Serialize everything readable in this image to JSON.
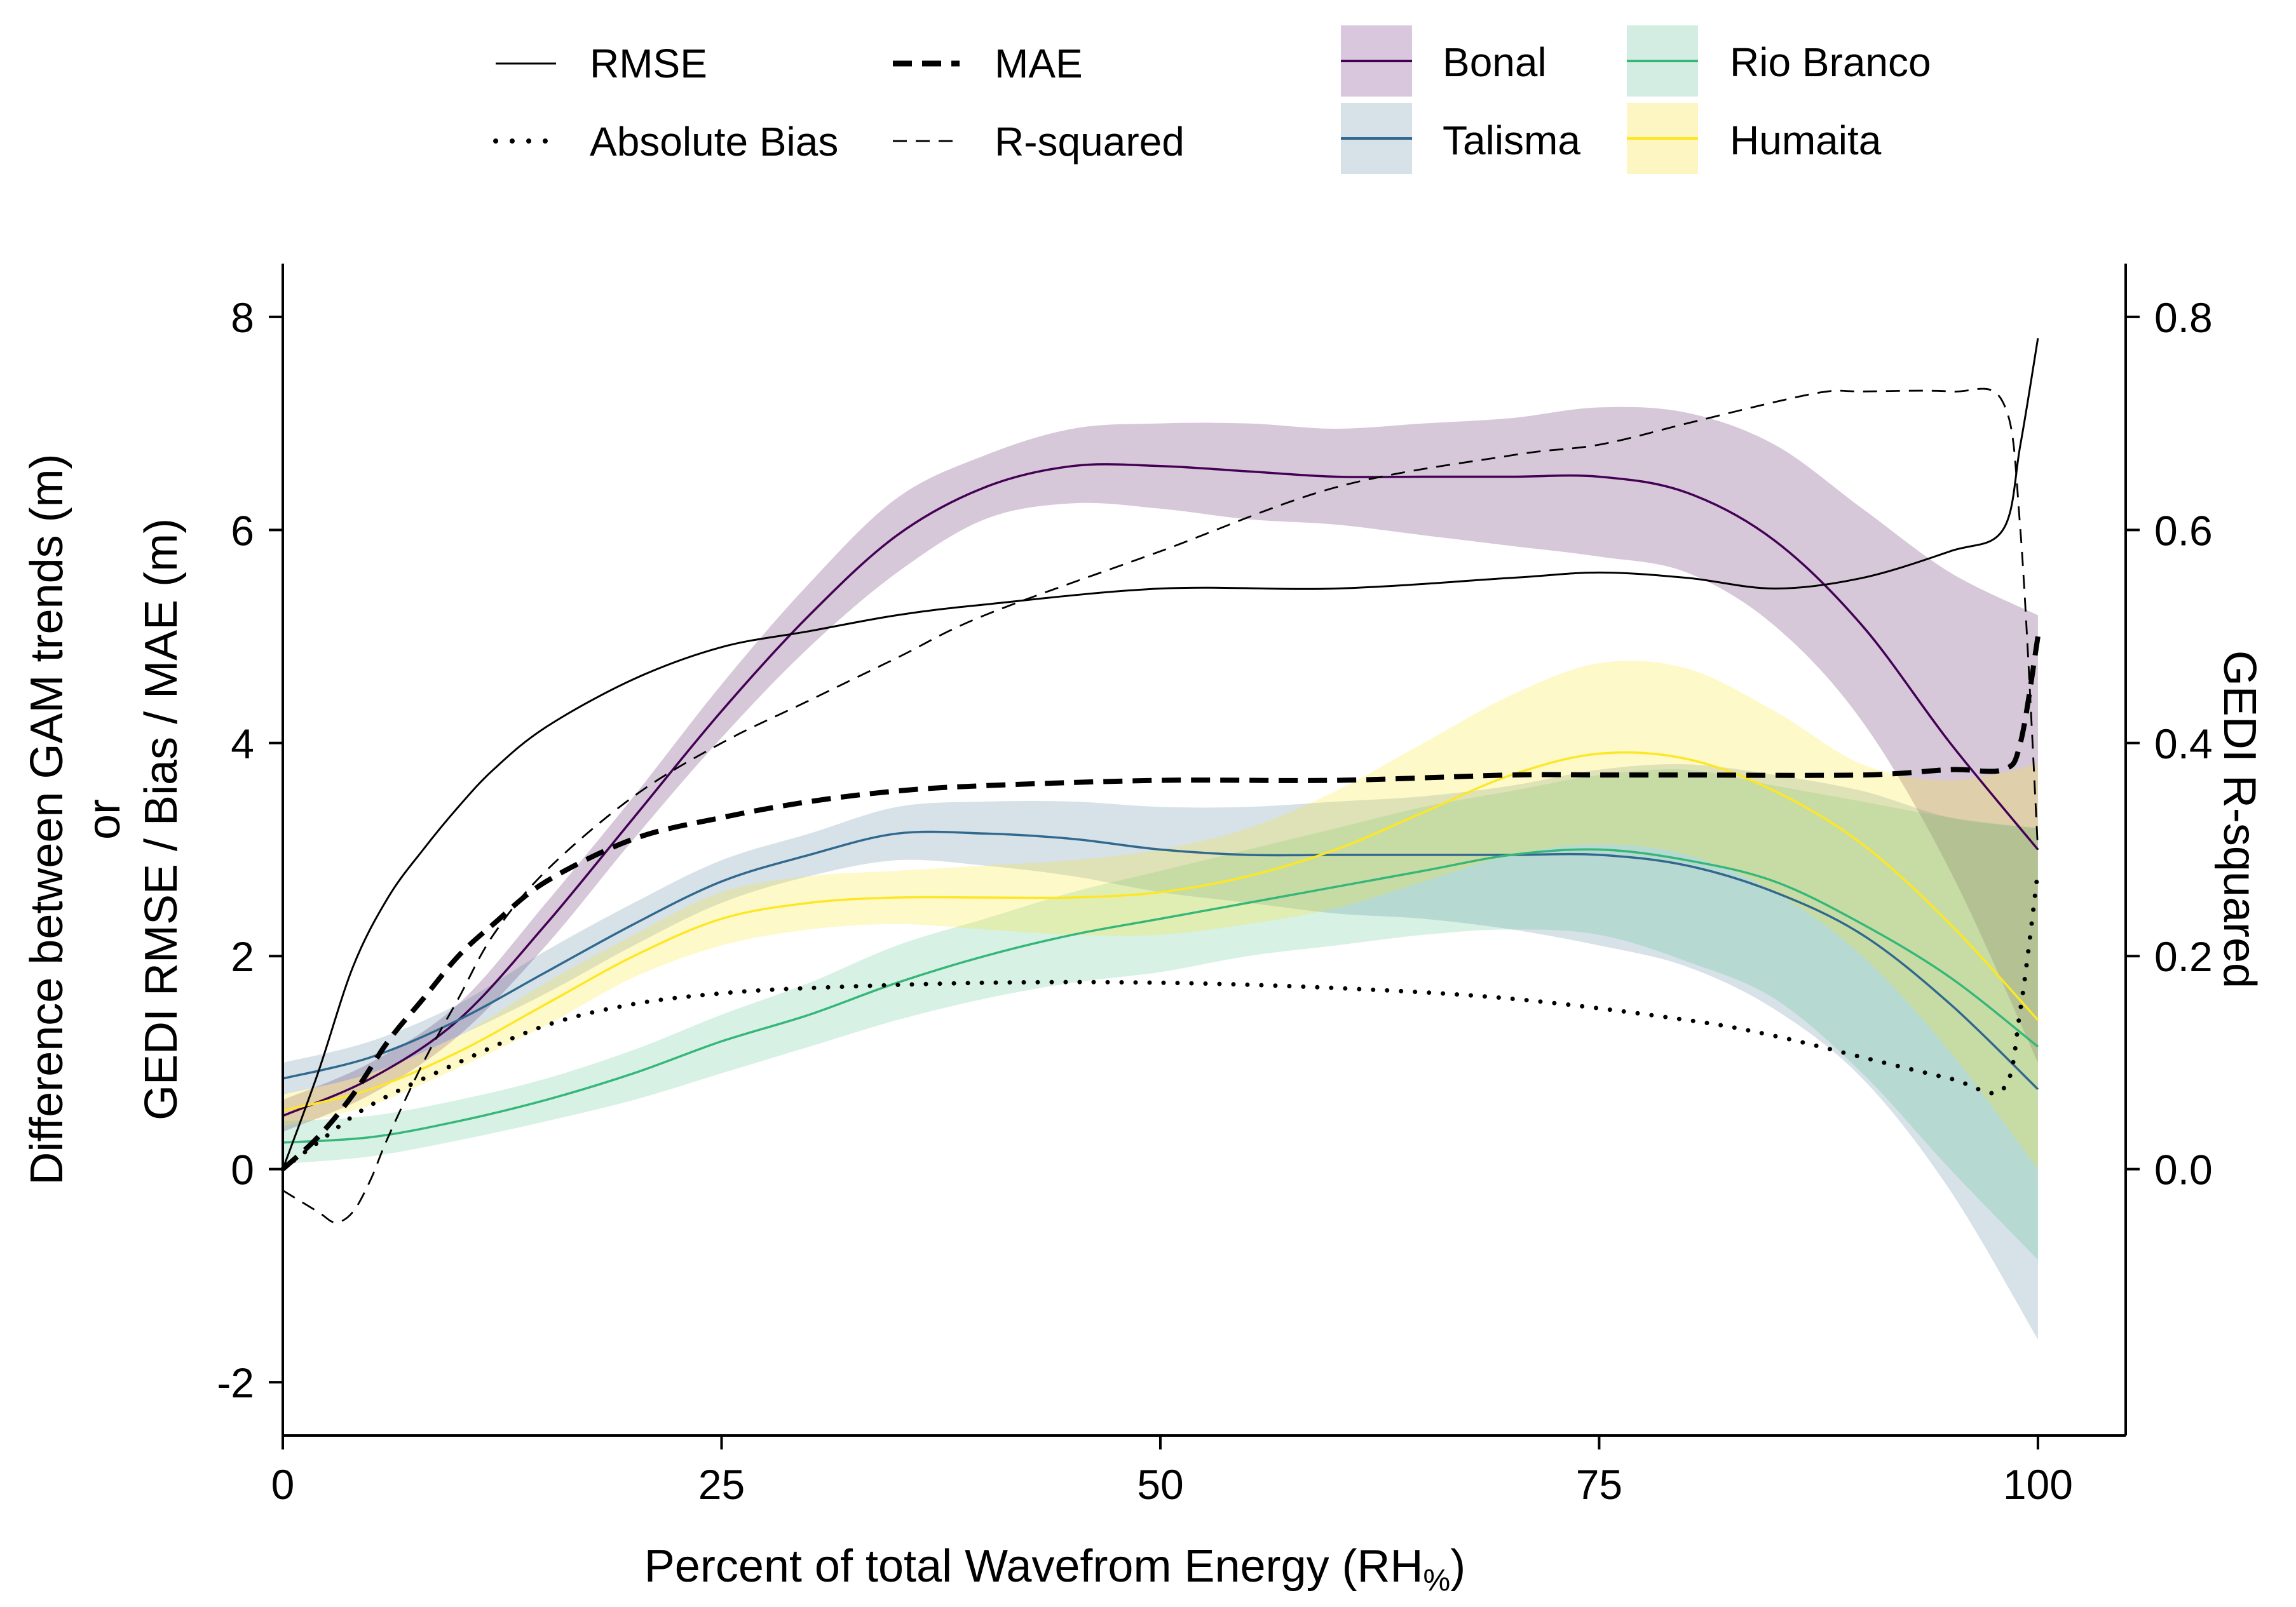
{
  "chart_data": {
    "type": "line",
    "xlabel": "Percent of total Wavefrom Energy (RH",
    "xlabel_subscript": "%",
    "xlabel_close": ")",
    "ylabel_line1": "Difference between GAM trends (m)",
    "ylabel_line2": "or",
    "ylabel_line3": "GEDI RMSE / Bias / MAE (m)",
    "y2label": "GEDI  R-squared",
    "xlim": [
      0,
      105
    ],
    "ylim": [
      -2.5,
      8.5
    ],
    "y2lim": [
      -0.25,
      0.85
    ],
    "x_ticks": [
      0,
      25,
      50,
      75,
      100
    ],
    "x_tick_labels": [
      "0",
      "25",
      "50",
      "75",
      "100"
    ],
    "y_ticks": [
      -2,
      0,
      2,
      4,
      6,
      8
    ],
    "y_tick_labels": [
      "-2",
      "0",
      "2",
      "4",
      "6",
      "8"
    ],
    "y2_ticks": [
      0.0,
      0.2,
      0.4,
      0.6,
      0.8
    ],
    "y2_tick_labels": [
      "0.0",
      "0.2",
      "0.4",
      "0.6",
      "0.8"
    ],
    "legend_metrics": [
      {
        "label": "RMSE",
        "style": "solid"
      },
      {
        "label": "MAE",
        "style": "bold-dash"
      },
      {
        "label": "Absolute Bias",
        "style": "dotted"
      },
      {
        "label": "R-squared",
        "style": "thin-dash"
      }
    ],
    "legend_sites": [
      {
        "label": "Bonal",
        "color": "#440154",
        "fill": "#d8c7dd"
      },
      {
        "label": "Rio Branco",
        "color": "#35b779",
        "fill": "#d3ede2"
      },
      {
        "label": "Talisma",
        "color": "#31688e",
        "fill": "#d6e1e8"
      },
      {
        "label": "Humaita",
        "color": "#fde725",
        "fill": "#fdf5c2"
      }
    ],
    "x": [
      0,
      5,
      10,
      15,
      20,
      25,
      30,
      35,
      40,
      45,
      50,
      55,
      60,
      65,
      70,
      75,
      80,
      85,
      90,
      95,
      100
    ],
    "sites": [
      {
        "name": "Bonal",
        "color": "#440154",
        "fill": "#440154",
        "fill_opacity": 0.22,
        "values": [
          0.5,
          0.85,
          1.4,
          2.3,
          3.3,
          4.3,
          5.2,
          5.95,
          6.4,
          6.6,
          6.6,
          6.55,
          6.5,
          6.5,
          6.5,
          6.5,
          6.35,
          5.9,
          5.1,
          4.0,
          3.0
        ],
        "lower": [
          0.35,
          0.7,
          1.25,
          2.1,
          3.1,
          4.05,
          4.9,
          5.6,
          6.1,
          6.25,
          6.2,
          6.1,
          6.05,
          5.95,
          5.85,
          5.75,
          5.6,
          5.1,
          4.2,
          2.8,
          1.0
        ],
        "upper": [
          0.65,
          1.0,
          1.55,
          2.5,
          3.5,
          4.55,
          5.5,
          6.3,
          6.7,
          6.95,
          7.0,
          7.0,
          6.95,
          7.0,
          7.05,
          7.15,
          7.1,
          6.8,
          6.2,
          5.6,
          5.2
        ]
      },
      {
        "name": "Talisma",
        "color": "#31688e",
        "fill": "#31688e",
        "fill_opacity": 0.2,
        "values": [
          0.85,
          1.05,
          1.4,
          1.85,
          2.3,
          2.7,
          2.95,
          3.15,
          3.15,
          3.1,
          3.0,
          2.95,
          2.95,
          2.95,
          2.95,
          2.95,
          2.85,
          2.6,
          2.2,
          1.55,
          0.75
        ],
        "lower": [
          0.7,
          0.9,
          1.25,
          1.65,
          2.1,
          2.5,
          2.75,
          2.9,
          2.85,
          2.75,
          2.6,
          2.5,
          2.4,
          2.35,
          2.25,
          2.1,
          1.9,
          1.5,
          0.85,
          -0.2,
          -1.6
        ],
        "upper": [
          1.0,
          1.2,
          1.55,
          2.05,
          2.5,
          2.9,
          3.15,
          3.4,
          3.45,
          3.45,
          3.4,
          3.4,
          3.45,
          3.5,
          3.6,
          3.75,
          3.8,
          3.7,
          3.55,
          3.3,
          3.2
        ]
      },
      {
        "name": "Rio Branco",
        "color": "#35b779",
        "fill": "#35b779",
        "fill_opacity": 0.2,
        "values": [
          0.25,
          0.3,
          0.45,
          0.65,
          0.9,
          1.2,
          1.45,
          1.75,
          2.0,
          2.2,
          2.35,
          2.5,
          2.65,
          2.8,
          2.95,
          3.0,
          2.9,
          2.7,
          2.3,
          1.8,
          1.15
        ],
        "lower": [
          0.05,
          0.12,
          0.27,
          0.45,
          0.65,
          0.9,
          1.15,
          1.4,
          1.6,
          1.75,
          1.85,
          2.0,
          2.1,
          2.2,
          2.25,
          2.2,
          1.95,
          1.6,
          0.9,
          0.0,
          -0.85
        ],
        "upper": [
          0.45,
          0.5,
          0.65,
          0.85,
          1.12,
          1.45,
          1.75,
          2.1,
          2.35,
          2.6,
          2.8,
          3.0,
          3.2,
          3.4,
          3.55,
          3.7,
          3.75,
          3.6,
          3.45,
          3.3,
          3.2
        ]
      },
      {
        "name": "Humaita",
        "color": "#fde725",
        "fill": "#fde725",
        "fill_opacity": 0.25,
        "values": [
          0.55,
          0.75,
          1.1,
          1.55,
          2.0,
          2.35,
          2.5,
          2.55,
          2.55,
          2.55,
          2.6,
          2.75,
          3.0,
          3.35,
          3.7,
          3.9,
          3.85,
          3.55,
          3.05,
          2.3,
          1.4
        ],
        "lower": [
          0.4,
          0.6,
          0.95,
          1.35,
          1.8,
          2.1,
          2.25,
          2.3,
          2.25,
          2.2,
          2.2,
          2.3,
          2.45,
          2.7,
          2.95,
          3.05,
          2.95,
          2.6,
          2.0,
          1.1,
          0.0
        ],
        "upper": [
          0.7,
          0.9,
          1.25,
          1.75,
          2.2,
          2.6,
          2.75,
          2.8,
          2.85,
          2.9,
          3.0,
          3.2,
          3.55,
          4.0,
          4.45,
          4.75,
          4.7,
          4.3,
          3.8,
          3.65,
          3.8
        ]
      }
    ],
    "metrics": [
      {
        "name": "RMSE",
        "axis": "left",
        "x": [
          0,
          2,
          4,
          6,
          8,
          10,
          12,
          15,
          20,
          25,
          30,
          35,
          40,
          50,
          60,
          70,
          75,
          80,
          85,
          90,
          95,
          98,
          99,
          100
        ],
        "y": [
          0.0,
          0.9,
          1.9,
          2.55,
          3.0,
          3.4,
          3.75,
          4.15,
          4.6,
          4.9,
          5.05,
          5.2,
          5.3,
          5.45,
          5.45,
          5.55,
          5.6,
          5.55,
          5.45,
          5.55,
          5.8,
          6.0,
          6.8,
          7.8
        ]
      },
      {
        "name": "MAE",
        "axis": "left",
        "x": [
          0,
          2,
          4,
          6,
          8,
          10,
          12,
          15,
          20,
          25,
          30,
          35,
          40,
          50,
          60,
          70,
          75,
          80,
          90,
          95,
          98,
          99,
          100
        ],
        "y": [
          0.0,
          0.3,
          0.7,
          1.2,
          1.6,
          2.0,
          2.3,
          2.7,
          3.1,
          3.3,
          3.45,
          3.55,
          3.6,
          3.65,
          3.65,
          3.7,
          3.7,
          3.7,
          3.7,
          3.75,
          3.75,
          4.0,
          5.0
        ]
      },
      {
        "name": "Absolute Bias",
        "axis": "left",
        "x": [
          0,
          2,
          5,
          10,
          15,
          20,
          25,
          30,
          40,
          50,
          60,
          70,
          80,
          85,
          90,
          95,
          98,
          99,
          100
        ],
        "y": [
          0.0,
          0.25,
          0.6,
          1.0,
          1.35,
          1.55,
          1.65,
          1.7,
          1.75,
          1.75,
          1.7,
          1.6,
          1.4,
          1.25,
          1.05,
          0.85,
          0.75,
          1.5,
          2.8
        ]
      },
      {
        "name": "R-squared",
        "axis": "right",
        "x": [
          0,
          2,
          3,
          4,
          5,
          6,
          8,
          10,
          12,
          15,
          20,
          25,
          30,
          35,
          40,
          50,
          60,
          70,
          75,
          80,
          85,
          88,
          90,
          95,
          98,
          99,
          100
        ],
        "y": [
          -0.02,
          -0.04,
          -0.05,
          -0.04,
          -0.01,
          0.03,
          0.1,
          0.16,
          0.22,
          0.28,
          0.35,
          0.4,
          0.44,
          0.48,
          0.52,
          0.58,
          0.64,
          0.67,
          0.68,
          0.7,
          0.72,
          0.73,
          0.73,
          0.73,
          0.72,
          0.6,
          0.3
        ]
      }
    ]
  }
}
